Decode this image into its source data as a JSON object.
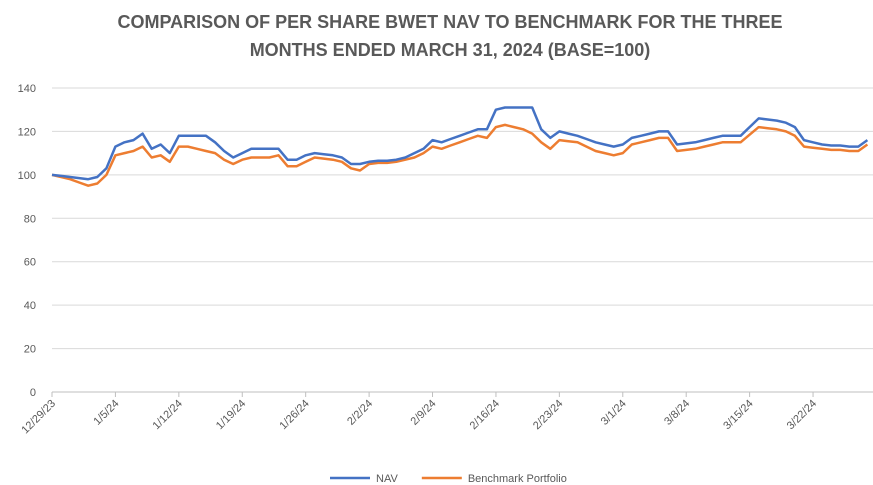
{
  "chart_data": {
    "type": "line",
    "title": "COMPARISON OF PER SHARE BWET NAV TO BENCHMARK FOR THE THREE MONTHS ENDED MARCH 31, 2024 (BASE=100)",
    "categories": [
      "12/29/23",
      null,
      null,
      null,
      null,
      null,
      null,
      "1/5/24",
      null,
      null,
      null,
      null,
      null,
      null,
      "1/12/24",
      null,
      null,
      null,
      null,
      null,
      null,
      "1/19/24",
      null,
      null,
      null,
      null,
      null,
      null,
      "1/26/24",
      null,
      null,
      null,
      null,
      null,
      null,
      "2/2/24",
      null,
      null,
      null,
      null,
      null,
      null,
      "2/9/24",
      null,
      null,
      null,
      null,
      null,
      null,
      "2/16/24",
      null,
      null,
      null,
      null,
      null,
      null,
      "2/23/24",
      null,
      null,
      null,
      null,
      null,
      null,
      "3/1/24",
      null,
      null,
      null,
      null,
      null,
      null,
      "3/8/24",
      null,
      null,
      null,
      null,
      null,
      null,
      "3/15/24",
      null,
      null,
      null,
      null,
      null,
      null,
      "3/22/24",
      null,
      null,
      null,
      null,
      null,
      null
    ],
    "series": [
      {
        "name": "NAV",
        "color": "#4472c4",
        "values": [
          100,
          99.5,
          99,
          98.5,
          98,
          99,
          103,
          113,
          115,
          116,
          119,
          112,
          114,
          110,
          118,
          118,
          118,
          118,
          115,
          111,
          108,
          110,
          112,
          112,
          112,
          112,
          107,
          107,
          109,
          110,
          109.5,
          109,
          108,
          105,
          105,
          106,
          106.5,
          106.5,
          107,
          108,
          110,
          112,
          116,
          115,
          116.5,
          118,
          119.5,
          121,
          121,
          130,
          131,
          131,
          131,
          131,
          121,
          117,
          120,
          119,
          118,
          116.5,
          115,
          114,
          113,
          114,
          117,
          118,
          119,
          120,
          120,
          114,
          114.5,
          115,
          116,
          117,
          118,
          118,
          118,
          122,
          126,
          125.5,
          125,
          124,
          122,
          116,
          115,
          114,
          113.5,
          113.5,
          113,
          113,
          116
        ]
      },
      {
        "name": "Benchmark Portfolio",
        "color": "#ed7d31",
        "values": [
          100,
          99,
          98,
          96.5,
          95,
          96,
          100,
          109,
          110,
          111,
          113,
          108,
          109,
          106,
          113,
          113,
          112,
          111,
          110,
          107,
          105,
          107,
          108,
          108,
          108,
          109,
          104,
          104,
          106,
          108,
          107.5,
          107,
          106,
          103,
          102,
          105,
          105.5,
          105.5,
          106,
          107,
          108,
          110,
          113,
          112,
          113.5,
          115,
          116.5,
          118,
          117,
          122,
          123,
          122,
          121,
          119,
          115,
          112,
          116,
          115.5,
          115,
          113,
          111,
          110,
          109,
          110,
          114,
          115,
          116,
          117,
          117,
          111,
          111.5,
          112,
          113,
          114,
          115,
          115,
          115,
          118.5,
          122,
          121.5,
          121,
          120,
          118,
          113,
          112.5,
          112,
          111.5,
          111.5,
          111,
          111,
          114
        ]
      }
    ],
    "ylim": [
      0,
      140
    ],
    "yticks": [
      0,
      20,
      40,
      60,
      80,
      100,
      120,
      140
    ],
    "grid": true,
    "legend": "bottom"
  }
}
